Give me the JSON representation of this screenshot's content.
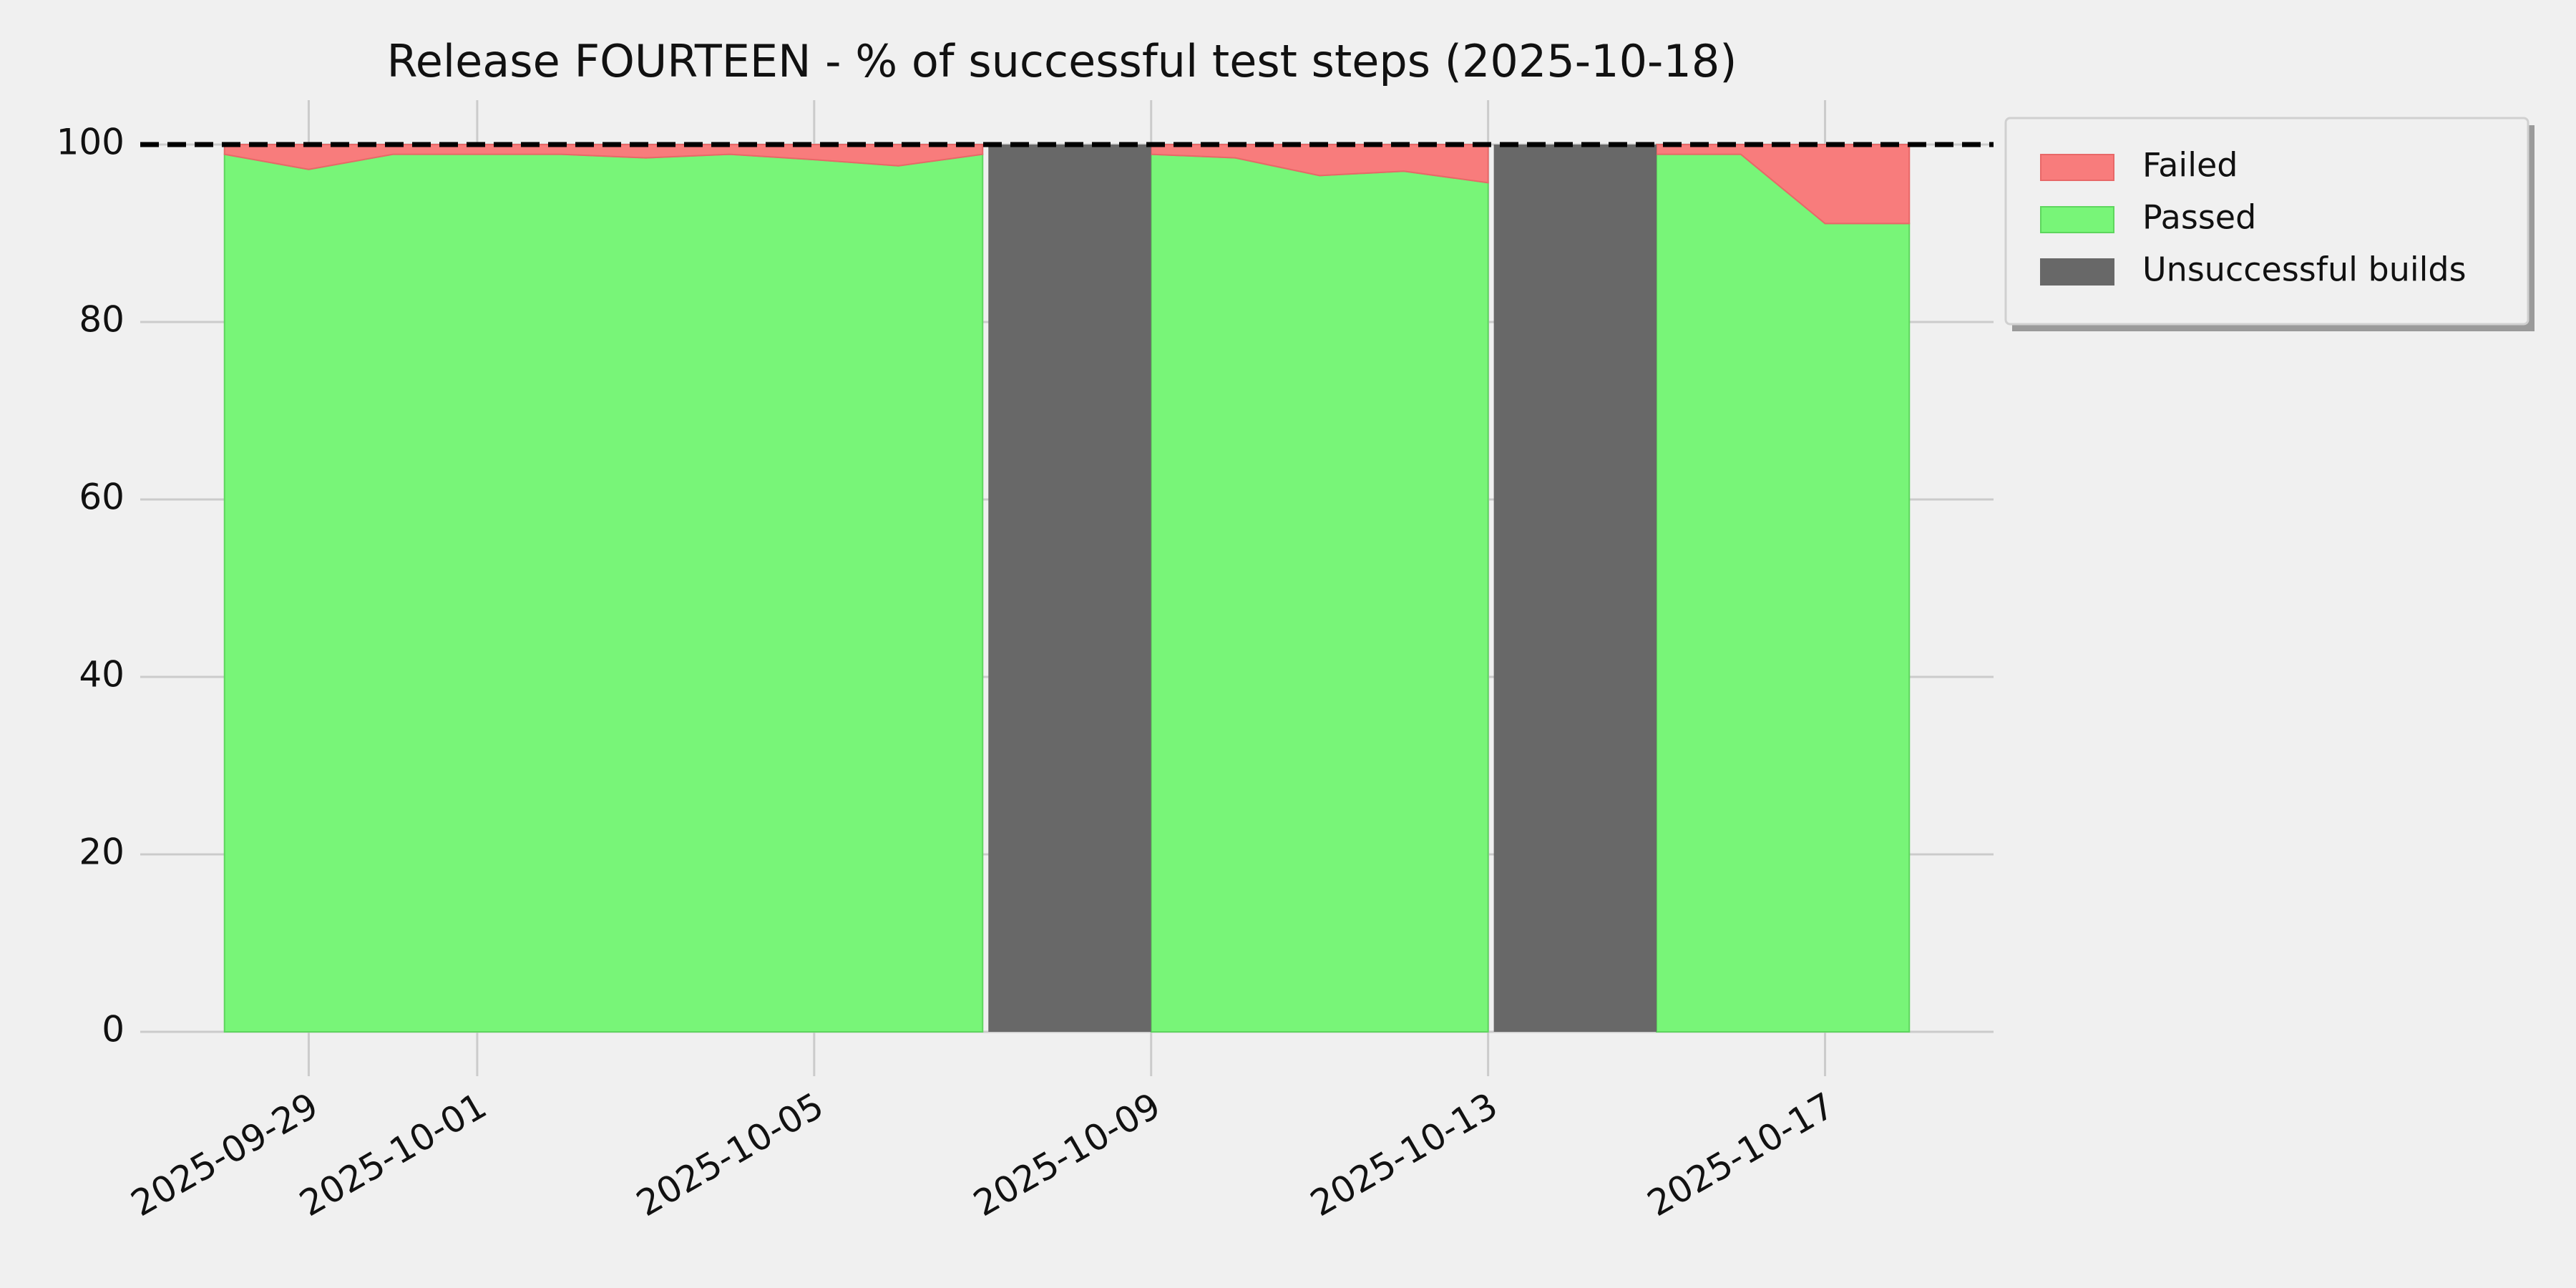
{
  "chart_data": {
    "type": "stacked-area",
    "title": "Release FOURTEEN - % of successful test steps (2025-10-18)",
    "x": [
      "2025-09-28",
      "2025-09-29",
      "2025-09-30",
      "2025-10-01",
      "2025-10-02",
      "2025-10-03",
      "2025-10-04",
      "2025-10-05",
      "2025-10-06",
      "2025-10-07",
      "2025-10-08",
      "2025-10-09",
      "2025-10-10",
      "2025-10-11",
      "2025-10-12",
      "2025-10-13",
      "2025-10-14",
      "2025-10-15",
      "2025-10-16",
      "2025-10-17",
      "2025-10-18"
    ],
    "series": [
      {
        "name": "Failed",
        "color": "#f87c7c",
        "values": [
          1.1,
          2.8,
          1.1,
          1.1,
          1.1,
          1.5,
          1.1,
          1.7,
          2.4,
          1.1,
          null,
          1.1,
          1.5,
          3.5,
          3.0,
          4.3,
          null,
          1.1,
          1.1,
          8.9,
          8.9
        ]
      },
      {
        "name": "Passed",
        "color": "#78f578",
        "values": [
          98.9,
          97.2,
          98.9,
          98.9,
          98.9,
          98.5,
          98.9,
          98.3,
          97.6,
          98.9,
          null,
          98.9,
          98.5,
          96.5,
          97.0,
          95.7,
          null,
          98.9,
          98.9,
          91.1,
          91.1
        ]
      },
      {
        "name": "Unsuccessful builds",
        "color": "#686868",
        "values": [
          null,
          null,
          null,
          null,
          null,
          null,
          null,
          null,
          null,
          null,
          100,
          null,
          null,
          null,
          null,
          null,
          100,
          null,
          null,
          null,
          null
        ]
      }
    ],
    "xlim": [
      "2025-09-27",
      "2025-10-19"
    ],
    "xticks": [
      "2025-09-29",
      "2025-10-01",
      "2025-10-05",
      "2025-10-09",
      "2025-10-13",
      "2025-10-17"
    ],
    "ylim": [
      -5,
      105
    ],
    "yticks": [
      0,
      20,
      40,
      60,
      80,
      100
    ],
    "reference_line": {
      "value": 100,
      "color": "#000000",
      "style": "dashed"
    },
    "grid": true,
    "legend_loc": "outside upper right"
  }
}
